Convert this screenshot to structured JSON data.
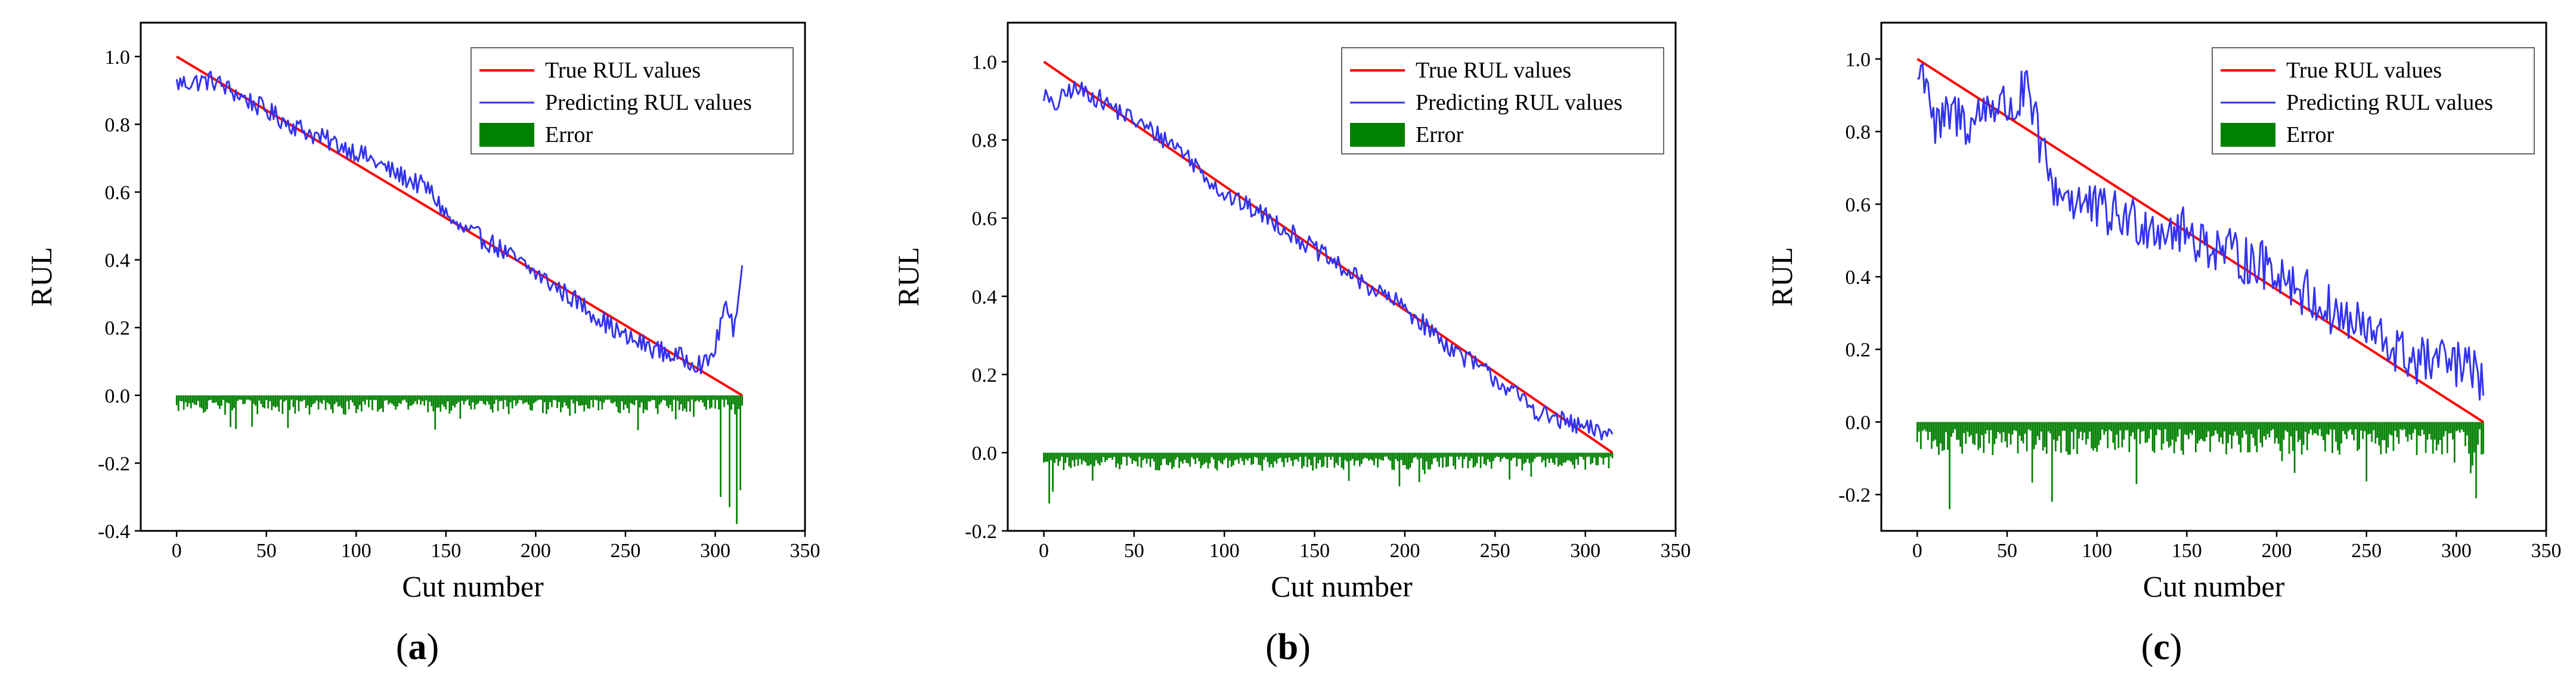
{
  "figure": {
    "colors": {
      "true_line": "#ff0000",
      "pred_line": "#3333ee",
      "error_bar": "#008000",
      "axes": "#000000"
    }
  },
  "chart_data": [
    {
      "type": "line",
      "panel_label": "a",
      "title": "",
      "xlabel": "Cut number",
      "ylabel": "RUL",
      "xlim": [
        -20,
        350
      ],
      "ylim": [
        -0.4,
        1.1
      ],
      "xticks": [
        0,
        50,
        100,
        150,
        200,
        250,
        300,
        350
      ],
      "xtick_labels": [
        "0",
        "50",
        "100",
        "150",
        "200",
        "250",
        "300",
        "350"
      ],
      "yticks": [
        -0.4,
        -0.2,
        0.0,
        0.2,
        0.4,
        0.6,
        0.8,
        1.0
      ],
      "ytick_labels": [
        "-0.4",
        "-0.2",
        "0.0",
        "0.2",
        "0.4",
        "0.6",
        "0.8",
        "1.0"
      ],
      "legend": {
        "position": "top-right",
        "entries": [
          "True RUL values",
          "Predicting RUL values",
          "Error"
        ]
      },
      "n_points": 315,
      "true_series": {
        "name": "True RUL values",
        "x": [
          0,
          315
        ],
        "y": [
          1.0,
          0.0
        ]
      },
      "predicted_series": {
        "name": "Predicting RUL values",
        "anchors_x": [
          0,
          20,
          40,
          60,
          80,
          100,
          120,
          140,
          155,
          175,
          200,
          225,
          250,
          275,
          295,
          300,
          305,
          310,
          315
        ],
        "anchors_y": [
          0.92,
          0.93,
          0.87,
          0.81,
          0.76,
          0.72,
          0.66,
          0.61,
          0.5,
          0.45,
          0.36,
          0.27,
          0.17,
          0.12,
          0.09,
          0.14,
          0.26,
          0.2,
          0.37
        ],
        "noise_amplitude": 0.03
      },
      "error_series": {
        "name": "Error",
        "max_abs": 0.38,
        "typical_abs": 0.05
      }
    },
    {
      "type": "line",
      "panel_label": "b",
      "title": "",
      "xlabel": "Cut number",
      "ylabel": "RUL",
      "xlim": [
        -20,
        350
      ],
      "ylim": [
        -0.2,
        1.1
      ],
      "xticks": [
        0,
        50,
        100,
        150,
        200,
        250,
        300,
        350
      ],
      "xtick_labels": [
        "0",
        "50",
        "100",
        "150",
        "200",
        "250",
        "300",
        "350"
      ],
      "yticks": [
        -0.2,
        0.0,
        0.2,
        0.4,
        0.6,
        0.8,
        1.0
      ],
      "ytick_labels": [
        "-0.2",
        "0.0",
        "0.2",
        "0.4",
        "0.6",
        "0.8",
        "1.0"
      ],
      "legend": {
        "position": "top-right",
        "entries": [
          "True RUL values",
          "Predicting RUL values",
          "Error"
        ]
      },
      "n_points": 315,
      "true_series": {
        "name": "True RUL values",
        "x": [
          0,
          315
        ],
        "y": [
          1.0,
          0.0
        ]
      },
      "predicted_series": {
        "name": "Predicting RUL values",
        "anchors_x": [
          0,
          5,
          15,
          25,
          50,
          75,
          100,
          125,
          150,
          175,
          200,
          225,
          250,
          275,
          300,
          315
        ],
        "anchors_y": [
          0.92,
          0.88,
          0.93,
          0.92,
          0.85,
          0.78,
          0.66,
          0.6,
          0.52,
          0.44,
          0.37,
          0.27,
          0.19,
          0.1,
          0.06,
          0.05
        ],
        "noise_amplitude": 0.025
      },
      "error_series": {
        "name": "Error",
        "max_abs": 0.13,
        "typical_abs": 0.04
      }
    },
    {
      "type": "line",
      "panel_label": "c",
      "title": "",
      "xlabel": "Cut number",
      "ylabel": "RUL",
      "xlim": [
        -20,
        350
      ],
      "ylim": [
        -0.3,
        1.1
      ],
      "xticks": [
        0,
        50,
        100,
        150,
        200,
        250,
        300,
        350
      ],
      "xtick_labels": [
        "0",
        "50",
        "100",
        "150",
        "200",
        "250",
        "300",
        "350"
      ],
      "yticks": [
        -0.2,
        0.0,
        0.2,
        0.4,
        0.6,
        0.8,
        1.0
      ],
      "ytick_labels": [
        "-0.2",
        "0.0",
        "0.2",
        "0.4",
        "0.6",
        "0.8",
        "1.0"
      ],
      "legend": {
        "position": "top-right",
        "entries": [
          "True RUL values",
          "Predicting RUL values",
          "Error"
        ]
      },
      "n_points": 315,
      "true_series": {
        "name": "True RUL values",
        "x": [
          0,
          315
        ],
        "y": [
          1.0,
          0.0
        ]
      },
      "predicted_series": {
        "name": "Predicting RUL values",
        "anchors_x": [
          0,
          5,
          10,
          20,
          30,
          40,
          55,
          60,
          75,
          100,
          125,
          150,
          175,
          200,
          225,
          250,
          275,
          300,
          315
        ],
        "anchors_y": [
          0.95,
          0.97,
          0.8,
          0.85,
          0.82,
          0.88,
          0.86,
          0.92,
          0.65,
          0.58,
          0.55,
          0.52,
          0.46,
          0.42,
          0.32,
          0.25,
          0.17,
          0.16,
          0.12
        ],
        "noise_amplitude": 0.07
      },
      "error_series": {
        "name": "Error",
        "max_abs": 0.24,
        "typical_abs": 0.08
      }
    }
  ]
}
